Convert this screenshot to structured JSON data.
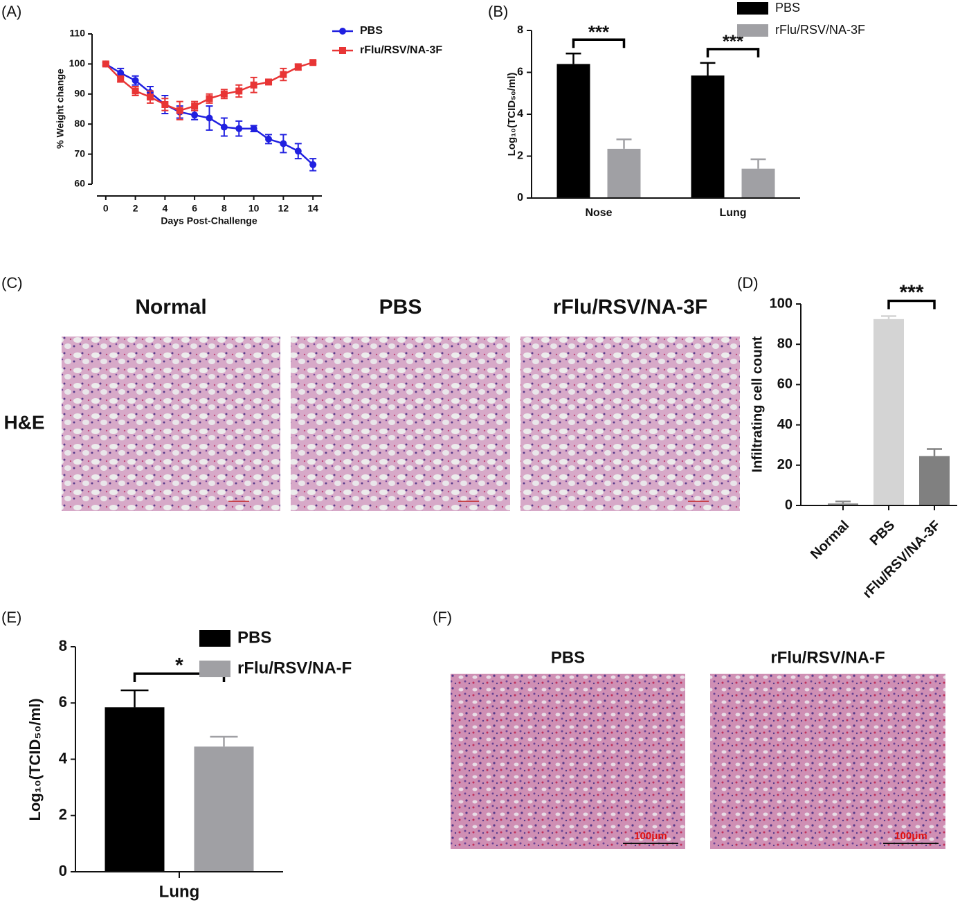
{
  "chart_data": [
    {
      "type": "line",
      "panel": "(A)",
      "x": [
        0,
        1,
        2,
        3,
        4,
        5,
        6,
        7,
        8,
        9,
        10,
        11,
        12,
        13,
        14
      ],
      "series": [
        {
          "name": "PBS",
          "color": "#2020e0",
          "marker": "circle",
          "values": [
            100,
            97,
            94.5,
            90.5,
            86.5,
            84,
            83,
            82,
            79,
            78.5,
            78.5,
            75,
            73.5,
            71,
            66.5
          ],
          "errors": [
            0.5,
            1.5,
            1.5,
            2,
            3,
            2,
            1.5,
            4,
            3,
            2.5,
            1,
            1.5,
            3,
            2.5,
            2
          ]
        },
        {
          "name": "rFlu/RSV/NA-3F",
          "color": "#e83535",
          "marker": "square",
          "values": [
            100,
            95,
            91,
            89,
            86.5,
            84.5,
            86,
            88.5,
            90,
            91,
            93,
            94,
            96.5,
            99,
            100.5
          ],
          "errors": [
            0.5,
            1,
            1.5,
            2,
            2,
            3,
            1.5,
            1.5,
            1.5,
            2,
            2.5,
            0.5,
            2,
            1,
            0.5
          ]
        }
      ],
      "xlim": [
        -0.6,
        14.6
      ],
      "xticks": [
        0,
        2,
        4,
        6,
        8,
        10,
        12,
        14
      ],
      "ylim": [
        60,
        110
      ],
      "yticks": [
        60,
        70,
        80,
        90,
        100,
        110
      ],
      "xlabel": "Days Post-Challenge",
      "ylabel": "% Weight change"
    },
    {
      "type": "bar",
      "panel": "(B)",
      "categories": [
        "Nose",
        "Lung"
      ],
      "series": [
        {
          "name": "PBS",
          "color": "#000000",
          "values": [
            6.4,
            5.85
          ],
          "errors": [
            0.5,
            0.6
          ]
        },
        {
          "name": "rFlu/RSV/NA-3F",
          "color": "#a0a0a4",
          "values": [
            2.35,
            1.4
          ],
          "errors": [
            0.45,
            0.45
          ]
        }
      ],
      "ylim": [
        0,
        8
      ],
      "yticks": [
        0,
        2,
        4,
        6,
        8
      ],
      "ylabel": "Log₁₀(TCID₅₀/ml)",
      "annotations": [
        "***",
        "***"
      ]
    },
    {
      "type": "image",
      "panel": "(C)",
      "titles": [
        "Normal",
        "PBS",
        "rFlu/RSV/NA-3F"
      ],
      "row_label": "H&E"
    },
    {
      "type": "bar",
      "panel": "(D)",
      "categories": [
        "Normal",
        "PBS",
        "rFlu/RSV/NA-3F"
      ],
      "values": [
        1,
        92.5,
        24.5
      ],
      "errors": [
        1,
        1.5,
        3.5
      ],
      "colors": [
        "#8a8a8a",
        "#d4d4d4",
        "#808080"
      ],
      "ylim": [
        0,
        100
      ],
      "yticks": [
        0,
        20,
        40,
        60,
        80,
        100
      ],
      "ylabel": "Infiltrating cell count",
      "annotations": [
        "***"
      ]
    },
    {
      "type": "bar",
      "panel": "(E)",
      "categories": [
        "Lung"
      ],
      "series": [
        {
          "name": "PBS",
          "color": "#000000",
          "values": [
            5.85
          ],
          "errors": [
            0.6
          ]
        },
        {
          "name": "rFlu/RSV/NA-F",
          "color": "#a0a0a4",
          "values": [
            4.45
          ],
          "errors": [
            0.35
          ]
        }
      ],
      "ylim": [
        0,
        8
      ],
      "yticks": [
        0,
        2,
        4,
        6,
        8
      ],
      "ylabel": "Log₁₀(TCID₅₀/ml)",
      "annotations": [
        "*"
      ]
    },
    {
      "type": "image",
      "panel": "(F)",
      "titles": [
        "PBS",
        "rFlu/RSV/NA-F"
      ],
      "scale_labels": [
        "100μm",
        "100μm"
      ]
    }
  ]
}
